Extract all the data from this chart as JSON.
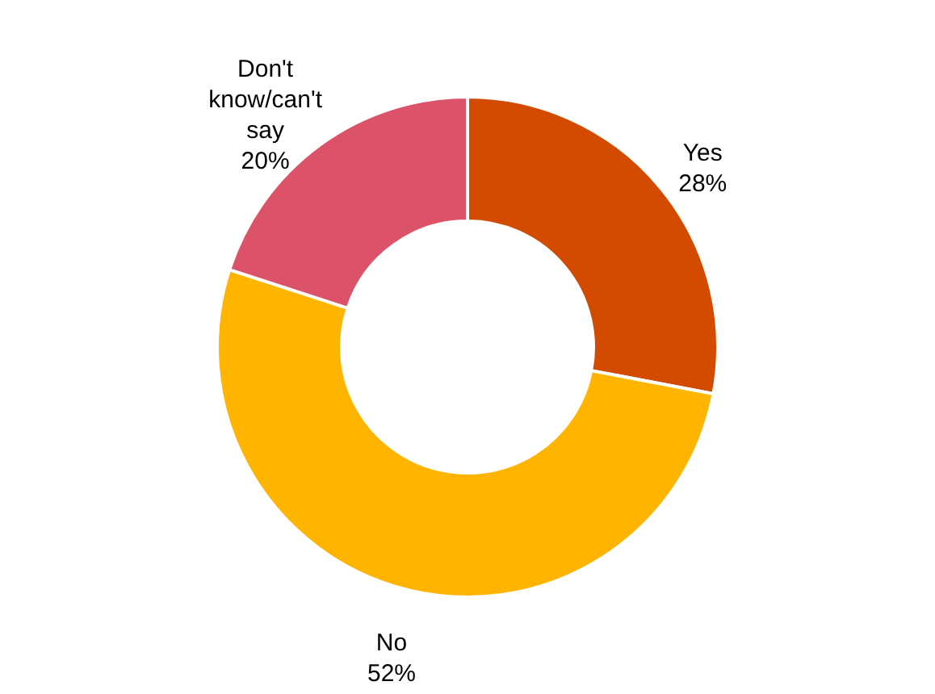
{
  "chart_data": {
    "type": "donut",
    "categories": [
      "Yes",
      "No",
      "Don't know/can't say"
    ],
    "values": [
      28,
      52,
      20
    ],
    "colors": [
      "#d24b00",
      "#ffb400",
      "#dc5369"
    ],
    "value_labels": [
      "28%",
      "52%",
      "20%"
    ]
  }
}
